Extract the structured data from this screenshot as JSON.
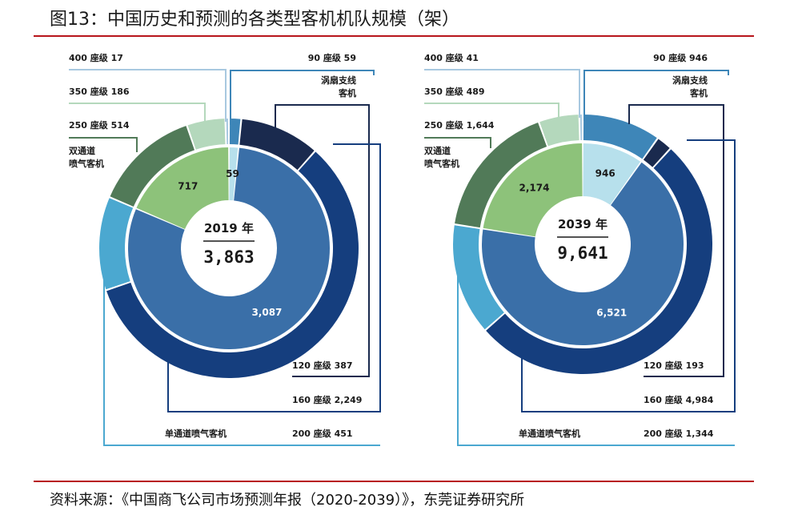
{
  "title": "图13：中国历史和预测的各类型客机机队规模（架）",
  "source": "资料来源：《中国商飞公司市场预测年报（2020-2039）》，东莞证券研究所",
  "colors": {
    "turboprop": "#3E86B8",
    "regional_jet": "#8DC27A",
    "narrowbody": "#3A6FA8",
    "s90": "#3E86B8",
    "s120": "#1A2A4E",
    "s160": "#153E7E",
    "s200": "#4BA8D0",
    "s250": "#517A58",
    "s350": "#B4D8BC",
    "s400": "#A8C8E0"
  },
  "chart_data": [
    {
      "type": "pie",
      "center_label": "2019 年",
      "total": "3,863",
      "inner": [
        {
          "name": "涡扇支线客机",
          "value": 59,
          "label": "59",
          "color": "#B7E0EC",
          "text_color": "#1a1a1a"
        },
        {
          "name": "单通道喷气客机",
          "value": 3087,
          "label": "3,087",
          "color": "#3A6FA8",
          "text_color": "#ffffff"
        },
        {
          "name": "双通道喷气客机",
          "value": 717,
          "label": "717",
          "color": "#8DC27A",
          "text_color": "#1a1a1a"
        }
      ],
      "outer": [
        {
          "name": "90 座级",
          "value": 59,
          "label": "90 座级  59",
          "color": "#3E86B8"
        },
        {
          "name": "120 座级",
          "value": 387,
          "label": "120 座级  387",
          "color": "#1A2A4E"
        },
        {
          "name": "160 座级",
          "value": 2249,
          "label": "160 座级  2,249",
          "color": "#153E7E"
        },
        {
          "name": "200 座级",
          "value": 451,
          "label": "200 座级  451",
          "color": "#4BA8D0"
        },
        {
          "name": "250 座级",
          "value": 514,
          "label": "250 座级  514",
          "color": "#517A58"
        },
        {
          "name": "350 座级",
          "value": 186,
          "label": "350 座级  186",
          "color": "#B4D8BC"
        },
        {
          "name": "400 座级",
          "value": 17,
          "label": "400 座级  17",
          "color": "#A8C8E0"
        }
      ],
      "category_labels": {
        "turboprop": [
          "涡扇支线",
          "客机"
        ],
        "narrowbody": "单通道喷气客机",
        "widebody": [
          "双通道",
          "喷气客机"
        ]
      }
    },
    {
      "type": "pie",
      "center_label": "2039 年",
      "total": "9,641",
      "inner": [
        {
          "name": "涡扇支线客机",
          "value": 946,
          "label": "946",
          "color": "#B7E0EC",
          "text_color": "#1a1a1a"
        },
        {
          "name": "单通道喷气客机",
          "value": 6521,
          "label": "6,521",
          "color": "#3A6FA8",
          "text_color": "#ffffff"
        },
        {
          "name": "双通道喷气客机",
          "value": 2174,
          "label": "2,174",
          "color": "#8DC27A",
          "text_color": "#1a1a1a"
        }
      ],
      "outer": [
        {
          "name": "90 座级",
          "value": 946,
          "label": "90 座级  946",
          "color": "#3E86B8"
        },
        {
          "name": "120 座级",
          "value": 193,
          "label": "120 座级  193",
          "color": "#1A2A4E"
        },
        {
          "name": "160 座级",
          "value": 4984,
          "label": "160 座级  4,984",
          "color": "#153E7E"
        },
        {
          "name": "200 座级",
          "value": 1344,
          "label": "200 座级  1,344",
          "color": "#4BA8D0"
        },
        {
          "name": "250 座级",
          "value": 1644,
          "label": "250 座级  1,644",
          "color": "#517A58"
        },
        {
          "name": "350 座级",
          "value": 489,
          "label": "350 座级  489",
          "color": "#B4D8BC"
        },
        {
          "name": "400 座级",
          "value": 41,
          "label": "400 座级  41",
          "color": "#A8C8E0"
        }
      ],
      "category_labels": {
        "turboprop": [
          "涡扇支线",
          "客机"
        ],
        "narrowbody": "单通道喷气客机",
        "widebody": [
          "双通道",
          "喷气客机"
        ]
      }
    }
  ]
}
